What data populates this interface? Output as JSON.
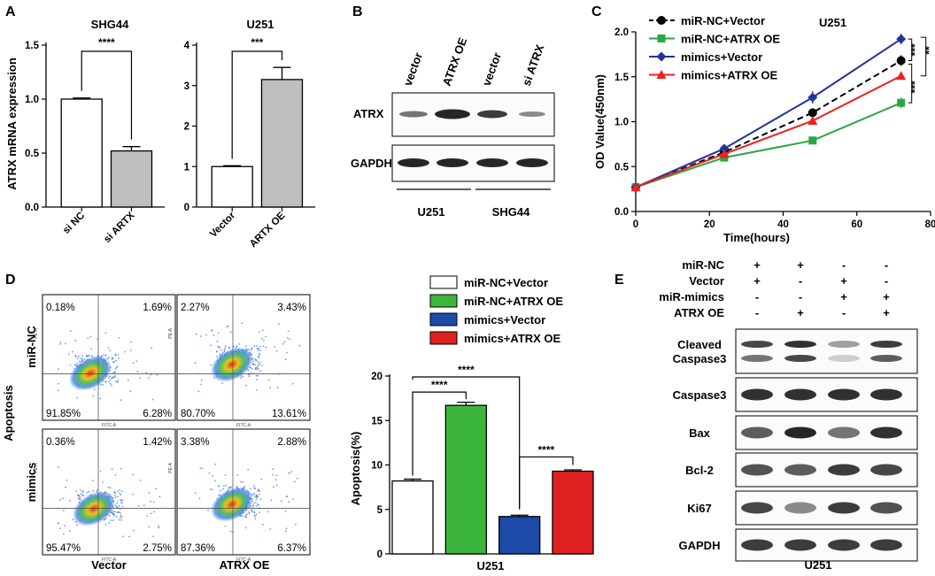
{
  "panels": {
    "A": {
      "label": "A",
      "ylabel": "ATRX mRNA expression",
      "charts": [
        {
          "type": "bar",
          "title": "SHG44",
          "categories": [
            "si NC",
            "si ARTX"
          ],
          "values": [
            1.0,
            0.52
          ],
          "errors": [
            0.01,
            0.04
          ],
          "ylim": [
            0,
            1.5
          ],
          "yticks": [
            "0.0",
            "0.5",
            "1.0",
            "1.5"
          ],
          "sig": "****",
          "colors": [
            "#ffffff",
            "#bfbfbf"
          ]
        },
        {
          "type": "bar",
          "title": "U251",
          "categories": [
            "Vector",
            "ARTX OE"
          ],
          "values": [
            1.0,
            3.15
          ],
          "errors": [
            0.02,
            0.3
          ],
          "ylim": [
            0,
            4
          ],
          "yticks": [
            "0",
            "1",
            "2",
            "3",
            "4"
          ],
          "sig": "***",
          "colors": [
            "#ffffff",
            "#bfbfbf"
          ]
        }
      ]
    },
    "B": {
      "label": "B",
      "lanes": [
        "vector",
        "ATRX OE",
        "vector",
        "si ATRX"
      ],
      "rows": [
        "ATRX",
        "GAPDH"
      ],
      "groups": [
        "U251",
        "SHG44"
      ]
    },
    "C": {
      "label": "C",
      "annotation": "U251",
      "sig_labels": [
        "***",
        "**",
        "***"
      ]
    },
    "D": {
      "label": "D",
      "side_label": "Apoptosis",
      "row_labels": [
        "miR-NC",
        "mimics"
      ],
      "col_labels": [
        "Vector",
        "ATRX OE"
      ],
      "plots": [
        {
          "q": [
            "0.18%",
            "1.69%",
            "91.85%",
            "6.28%"
          ]
        },
        {
          "q": [
            "2.27%",
            "3.43%",
            "80.70%",
            "13.61%"
          ]
        },
        {
          "q": [
            "0.36%",
            "1.42%",
            "95.47%",
            "2.75%"
          ]
        },
        {
          "q": [
            "3.38%",
            "2.88%",
            "87.36%",
            "6.37%"
          ]
        }
      ],
      "axis_x": "FITC-A",
      "axis_y": "PE-A",
      "sig": [
        "****",
        "****",
        "****"
      ]
    },
    "E": {
      "label": "E",
      "conditions": [
        {
          "name": "miR-NC",
          "signs": [
            "+",
            "+",
            "-",
            "-"
          ]
        },
        {
          "name": "Vector",
          "signs": [
            "+",
            "-",
            "+",
            "-"
          ]
        },
        {
          "name": "miR-mimics",
          "signs": [
            "-",
            "-",
            "+",
            "+"
          ]
        },
        {
          "name": "ATRX OE",
          "signs": [
            "-",
            "+",
            "-",
            "+"
          ]
        }
      ],
      "rows": [
        {
          "name": "Cleaved\nCaspase3"
        },
        {
          "name": "Caspase3"
        },
        {
          "name": "Bax"
        },
        {
          "name": "Bcl-2"
        },
        {
          "name": "Ki67"
        },
        {
          "name": "GAPDH"
        }
      ],
      "group_label": "U251"
    }
  },
  "chart_data": [
    {
      "type": "line",
      "panel": "C",
      "x": [
        0,
        24,
        48,
        72
      ],
      "series": [
        {
          "name": "miR-NC+Vector",
          "values": [
            0.27,
            0.66,
            1.1,
            1.68
          ],
          "errors": [
            0.02,
            0.03,
            0.04,
            0.06
          ],
          "color": "#000000"
        },
        {
          "name": "miR-NC+ATRX OE",
          "values": [
            0.27,
            0.6,
            0.79,
            1.21
          ],
          "errors": [
            0.02,
            0.03,
            0.04,
            0.06
          ],
          "color": "#2aa745"
        },
        {
          "name": "mimics+Vector",
          "values": [
            0.27,
            0.7,
            1.27,
            1.92
          ],
          "errors": [
            0.02,
            0.03,
            0.07,
            0.06
          ],
          "color": "#2033a0"
        },
        {
          "name": "mimics+ATRX OE",
          "values": [
            0.27,
            0.64,
            1.01,
            1.51
          ],
          "errors": [
            0.02,
            0.03,
            0.04,
            0.04
          ],
          "color": "#ee2020"
        }
      ],
      "xlabel": "Time(hours)",
      "ylabel": "OD Value(450nm)",
      "xlim": [
        0,
        80
      ],
      "ylim": [
        0,
        2.0
      ],
      "xticks": [
        "0",
        "20",
        "40",
        "60",
        "80"
      ],
      "yticks": [
        "0.0",
        "0.5",
        "1.0",
        "1.5",
        "2.0"
      ],
      "legend": "top-left"
    },
    {
      "type": "bar",
      "panel": "D",
      "categories": [
        "miR-NC+Vector",
        "miR-NC+ATRX OE",
        "mimics+Vector",
        "mimics+ATRX OE"
      ],
      "values": [
        8.2,
        16.7,
        4.2,
        9.3
      ],
      "errors": [
        0.2,
        0.35,
        0.15,
        0.15
      ],
      "colors": [
        "#ffffff",
        "#3cb53c",
        "#1b4aa8",
        "#e02121"
      ],
      "xlabel": "U251",
      "ylabel": "Apoptosis(%)",
      "ylim": [
        0,
        20
      ],
      "yticks": [
        "0",
        "5",
        "10",
        "15",
        "20"
      ],
      "legend": "top"
    }
  ]
}
